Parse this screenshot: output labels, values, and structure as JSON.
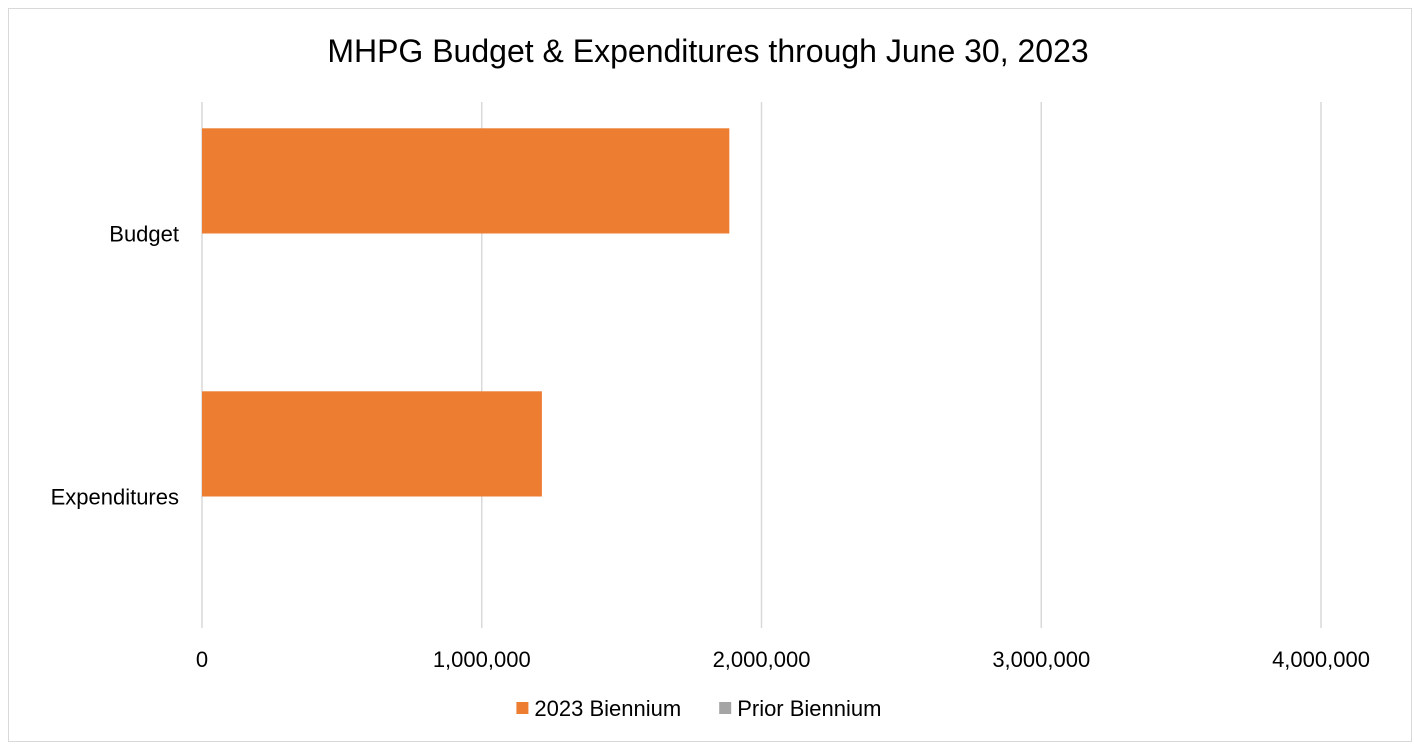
{
  "chart_data": {
    "type": "bar",
    "orientation": "horizontal",
    "title": "MHPG Budget & Expenditures through June 30, 2023",
    "categories": [
      "Budget",
      "Expenditures"
    ],
    "series": [
      {
        "name": "2023 Biennium",
        "color": "#ed7d31",
        "values": [
          1885000,
          1215000
        ]
      },
      {
        "name": "Prior Biennium",
        "color": "#a5a5a5",
        "values": [
          0,
          0
        ]
      }
    ],
    "xlim": [
      0,
      4000000
    ],
    "xticks": [
      0,
      1000000,
      2000000,
      3000000,
      4000000
    ],
    "xtick_labels": [
      "0",
      "1,000,000",
      "2,000,000",
      "3,000,000",
      "4,000,000"
    ],
    "grid": "vertical",
    "legend_position": "bottom",
    "colors": {
      "gridline": "#d9d9d9",
      "text": "#000000",
      "border": "#d9d9d9"
    }
  }
}
